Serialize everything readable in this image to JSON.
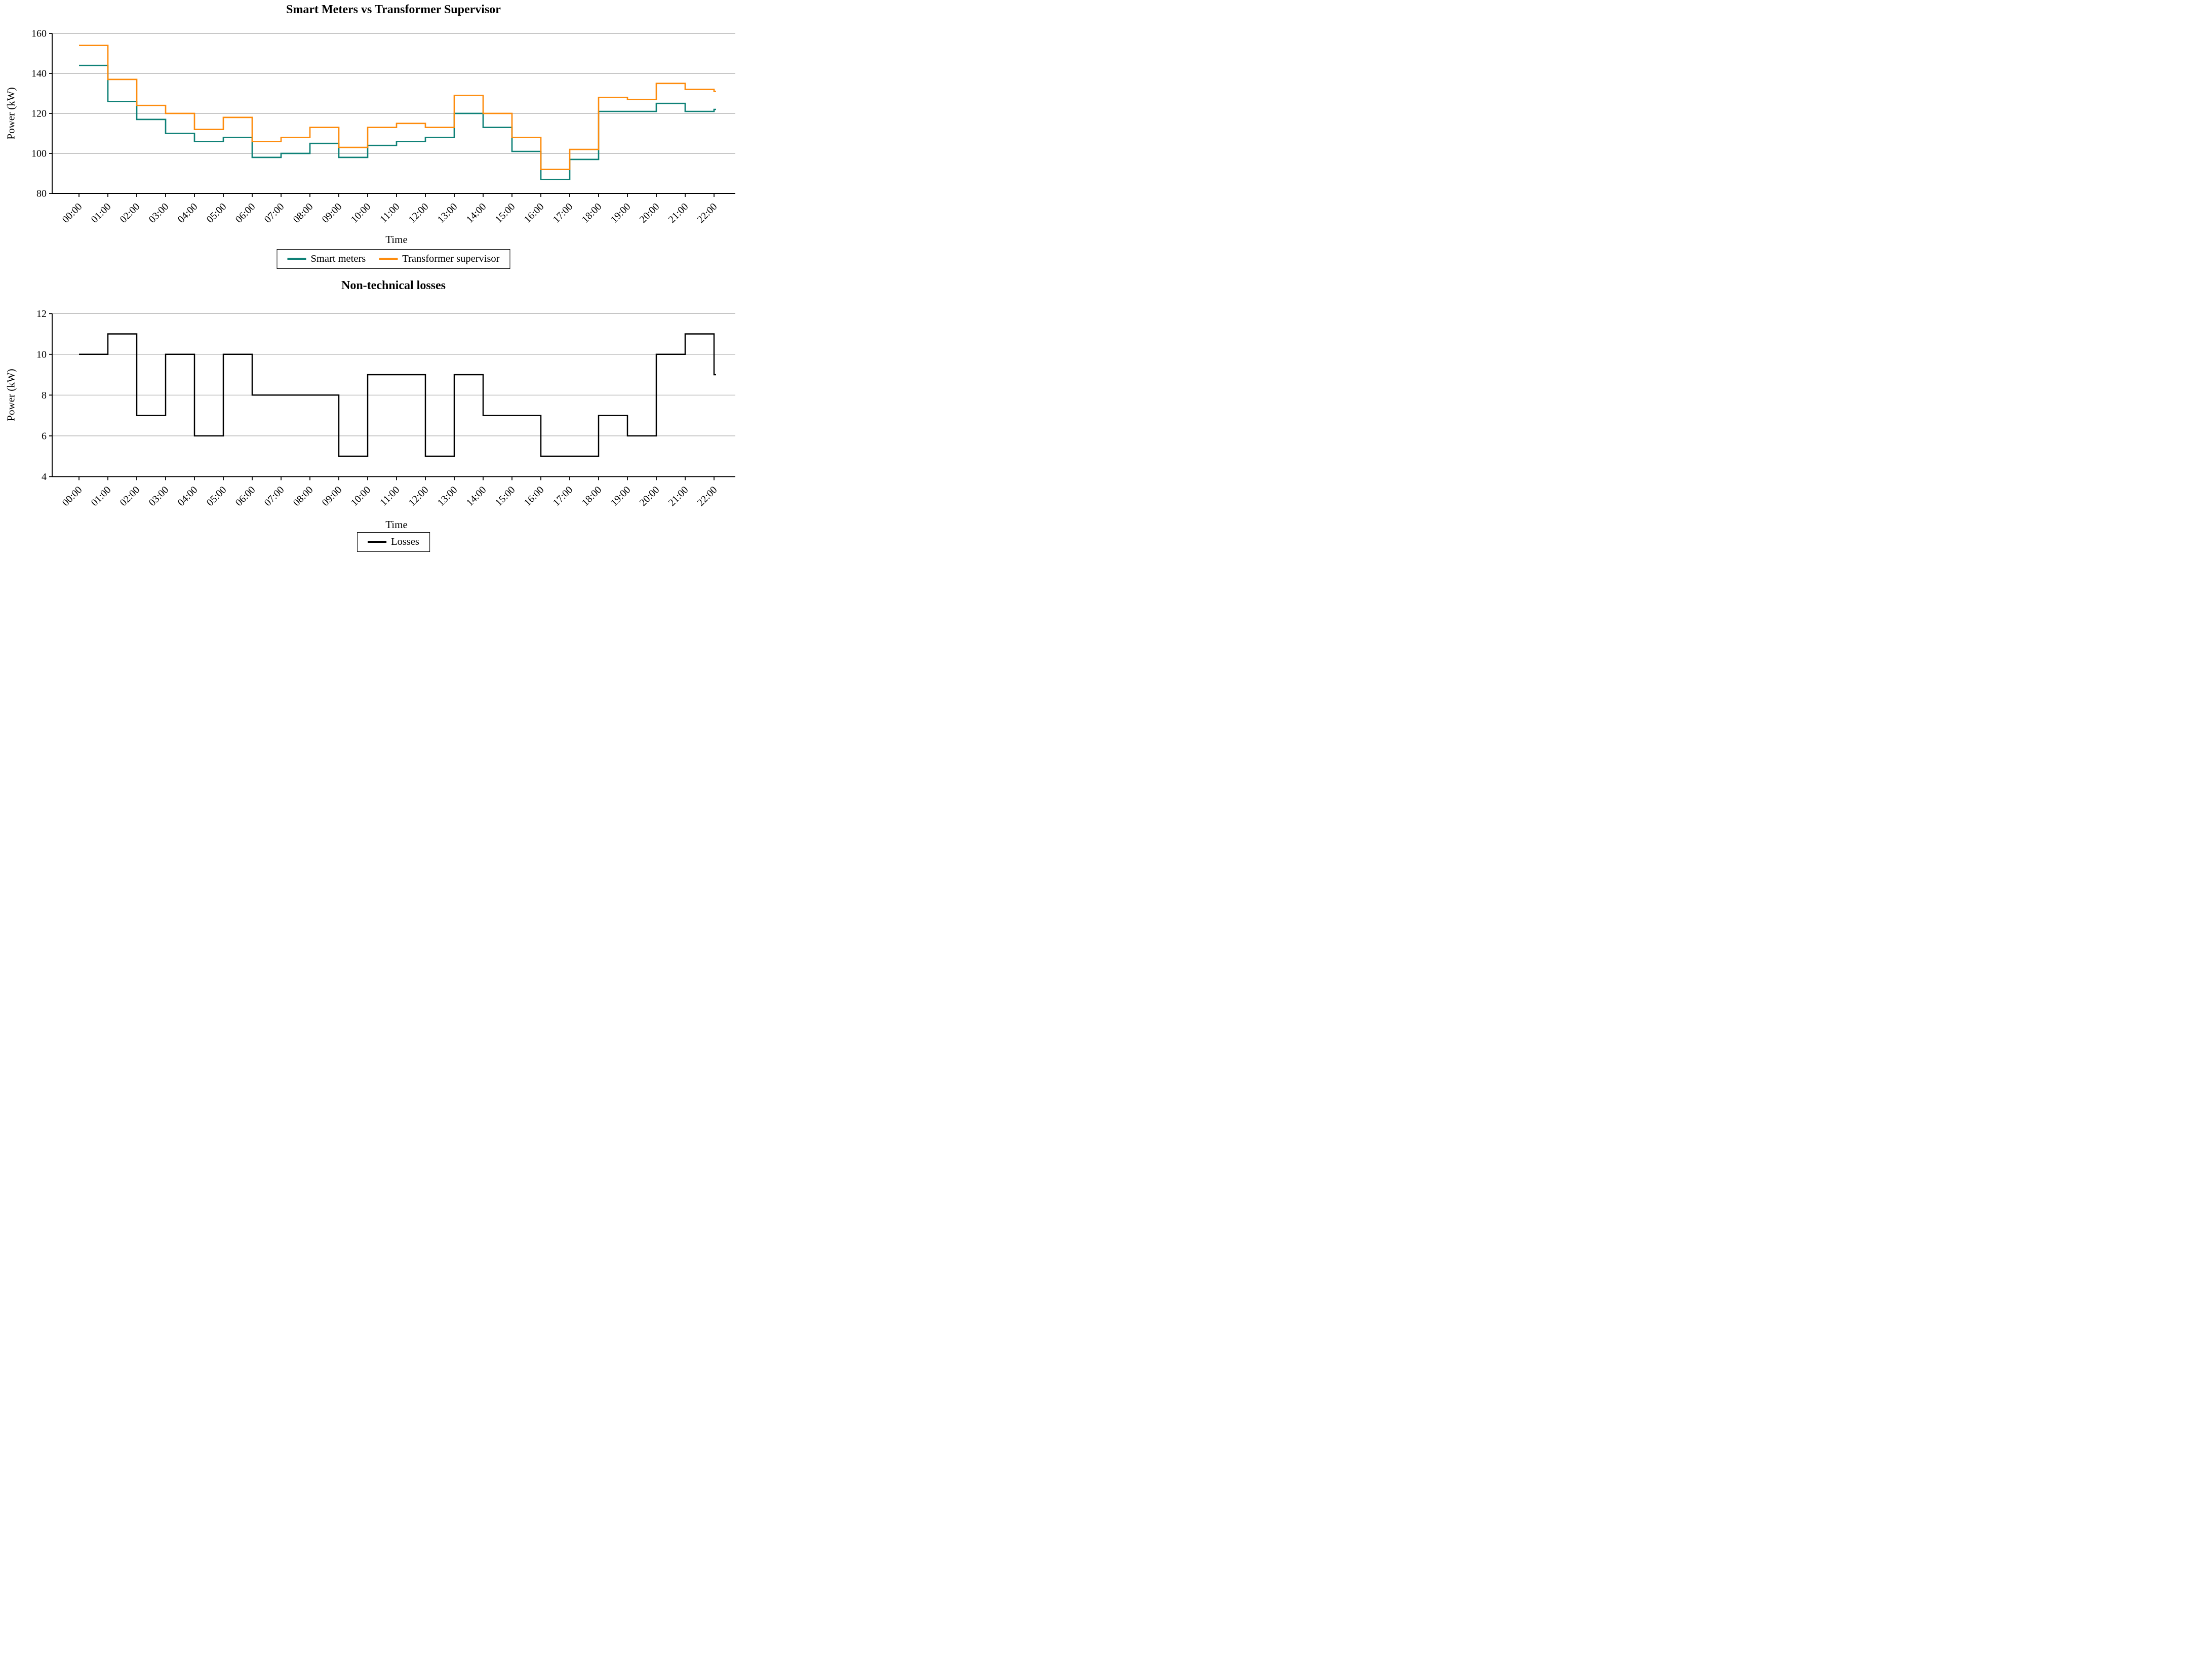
{
  "chart_data": [
    {
      "type": "step",
      "title": "Smart Meters vs Transformer Supervisor",
      "xlabel": "Time",
      "ylabel": "Power (kW)",
      "x": [
        "00:00",
        "01:00",
        "02:00",
        "03:00",
        "04:00",
        "05:00",
        "06:00",
        "07:00",
        "08:00",
        "09:00",
        "10:00",
        "11:00",
        "12:00",
        "13:00",
        "14:00",
        "15:00",
        "16:00",
        "17:00",
        "18:00",
        "19:00",
        "20:00",
        "21:00",
        "22:00"
      ],
      "y_tick_labels": [
        "80",
        "100",
        "120",
        "140",
        "160"
      ],
      "ylim": [
        80,
        160
      ],
      "grid": true,
      "legend_position": "below",
      "series": [
        {
          "name": "Smart meters",
          "color": "#0f8177",
          "values": [
            144,
            126,
            117,
            110,
            106,
            108,
            98,
            100,
            105,
            98,
            104,
            106,
            108,
            120,
            113,
            101,
            87,
            97,
            121,
            121,
            125,
            121,
            122
          ]
        },
        {
          "name": "Transformer supervisor",
          "color": "#fd8c0e",
          "values": [
            154,
            137,
            124,
            120,
            112,
            118,
            106,
            108,
            113,
            103,
            113,
            115,
            113,
            129,
            120,
            108,
            92,
            102,
            128,
            127,
            135,
            132,
            131
          ]
        }
      ]
    },
    {
      "type": "step",
      "title": "Non-technical losses",
      "xlabel": "Time",
      "ylabel": "Power (kW)",
      "x": [
        "00:00",
        "01:00",
        "02:00",
        "03:00",
        "04:00",
        "05:00",
        "06:00",
        "07:00",
        "08:00",
        "09:00",
        "10:00",
        "11:00",
        "12:00",
        "13:00",
        "14:00",
        "15:00",
        "16:00",
        "17:00",
        "18:00",
        "19:00",
        "20:00",
        "21:00",
        "22:00"
      ],
      "y_tick_labels": [
        "4",
        "6",
        "8",
        "10",
        "12"
      ],
      "ylim": [
        4,
        12
      ],
      "grid": true,
      "legend_position": "below",
      "series": [
        {
          "name": "Losses",
          "color": "#000000",
          "values": [
            10,
            11,
            7,
            10,
            6,
            10,
            8,
            8,
            8,
            5,
            9,
            9,
            5,
            9,
            7,
            7,
            5,
            5,
            7,
            6,
            10,
            11,
            9
          ]
        }
      ]
    }
  ],
  "style": {
    "grid_color": "#a8a8a8",
    "axis_color": "#000000"
  }
}
